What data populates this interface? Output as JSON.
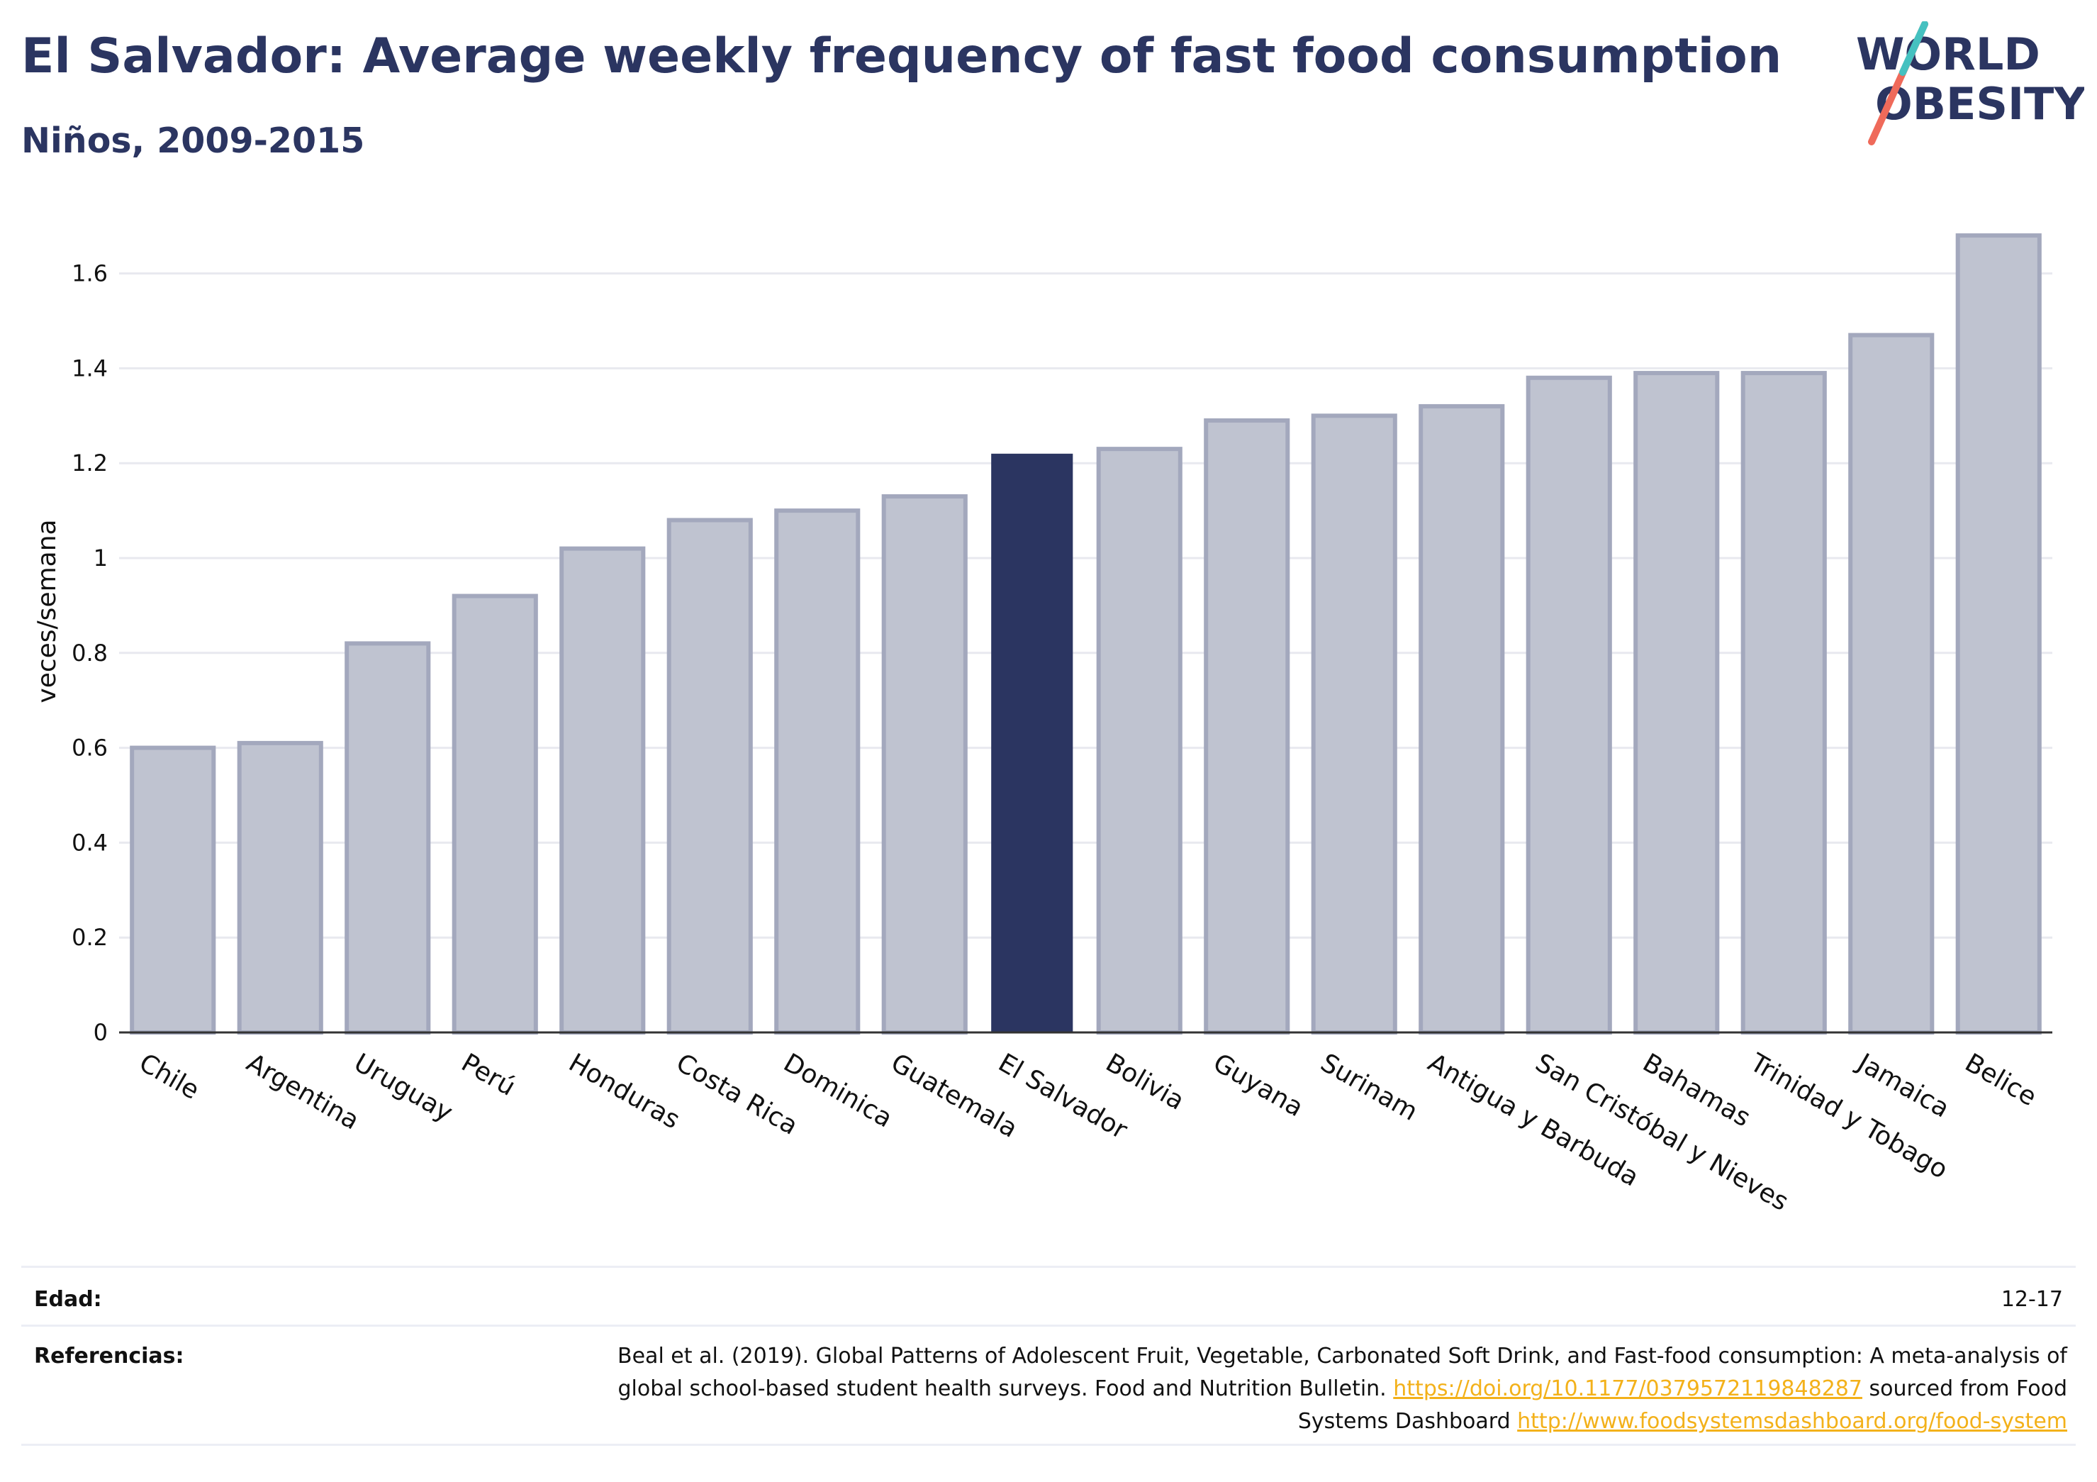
{
  "header": {
    "title": "El Salvador: Average weekly frequency of fast food consumption",
    "subtitle": "Niños, 2009-2015"
  },
  "logo": {
    "line1": "WORLD",
    "line2": "OBESITY"
  },
  "chart_data": {
    "type": "bar",
    "ylabel": "veces/semana",
    "ylim": [
      0,
      1.75
    ],
    "yticks": [
      0,
      0.2,
      0.4,
      0.6,
      0.8,
      1,
      1.2,
      1.4,
      1.6
    ],
    "ytick_labels": [
      "0",
      "0.2",
      "0.4",
      "0.6",
      "0.8",
      "1",
      "1.2",
      "1.4",
      "1.6"
    ],
    "grid": true,
    "categories": [
      "Chile",
      "Argentina",
      "Uruguay",
      "Perú",
      "Honduras",
      "Costa Rica",
      "Dominica",
      "Guatemala",
      "El Salvador",
      "Bolivia",
      "Guyana",
      "Surinam",
      "Antigua y Barbuda",
      "San Cristóbal y Nieves",
      "Bahamas",
      "Trinidad y Tobago",
      "Jamaica",
      "Belice"
    ],
    "values": [
      0.6,
      0.61,
      0.82,
      0.92,
      1.02,
      1.08,
      1.1,
      1.13,
      1.22,
      1.23,
      1.29,
      1.3,
      1.32,
      1.38,
      1.39,
      1.39,
      1.47,
      1.68
    ],
    "highlight": "El Salvador",
    "colors": {
      "bar": "#bfc3d0",
      "bar_border": "#a3a8bd",
      "highlight": "#2b3561"
    }
  },
  "footer": {
    "edad_label": "Edad:",
    "edad_value": "12-17",
    "ref_label": "Referencias:",
    "ref_text_1": "Beal et al. (2019). Global Patterns of Adolescent Fruit, Vegetable, Carbonated Soft Drink, and Fast-food consumption: A meta-analysis of global school-based student health surveys. Food and Nutrition Bulletin.",
    "ref_link_1": "https://doi.org/10.1177/0379572119848287",
    "ref_text_2": "sourced from Food Systems Dashboard",
    "ref_link_2": "http://www.foodsystemsdashboard.org/food-system"
  }
}
